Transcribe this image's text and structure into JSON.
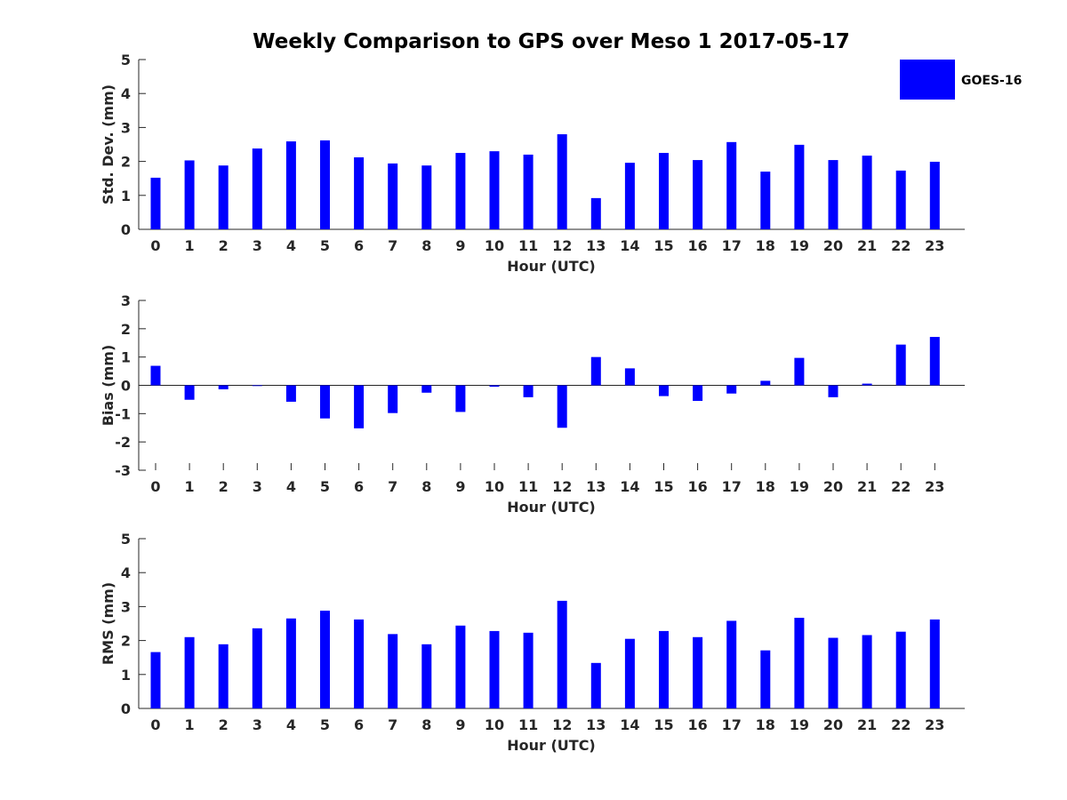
{
  "title": "Weekly Comparison to GPS over Meso 1 2017-05-17",
  "legend": {
    "label": "GOES-16",
    "color": "#0000ff"
  },
  "chart_data": [
    {
      "type": "bar",
      "name": "std-dev",
      "xlabel": "Hour (UTC)",
      "ylabel": "Std. Dev. (mm)",
      "ylim": [
        0,
        5
      ],
      "yticks": [
        "0",
        "1",
        "2",
        "3",
        "4",
        "5"
      ],
      "categories": [
        "0",
        "1",
        "2",
        "3",
        "4",
        "5",
        "6",
        "7",
        "8",
        "9",
        "10",
        "11",
        "12",
        "13",
        "14",
        "15",
        "16",
        "17",
        "18",
        "19",
        "20",
        "21",
        "22",
        "23"
      ],
      "series": [
        {
          "name": "GOES-16",
          "color": "#0000ff",
          "values": [
            1.52,
            2.03,
            1.88,
            2.38,
            2.59,
            2.62,
            2.12,
            1.94,
            1.88,
            2.25,
            2.3,
            2.2,
            2.8,
            0.92,
            1.96,
            2.25,
            2.04,
            2.57,
            1.7,
            2.49,
            2.04,
            2.17,
            1.73,
            1.99
          ]
        }
      ]
    },
    {
      "type": "bar",
      "name": "bias",
      "xlabel": "Hour (UTC)",
      "ylabel": "Bias (mm)",
      "ylim": [
        -3,
        3
      ],
      "yticks": [
        "-3",
        "-2",
        "-1",
        "0",
        "1",
        "2",
        "3"
      ],
      "categories": [
        "0",
        "1",
        "2",
        "3",
        "4",
        "5",
        "6",
        "7",
        "8",
        "9",
        "10",
        "11",
        "12",
        "13",
        "14",
        "15",
        "16",
        "17",
        "18",
        "19",
        "20",
        "21",
        "22",
        "23"
      ],
      "series": [
        {
          "name": "GOES-16",
          "color": "#0000ff",
          "values": [
            0.69,
            -0.51,
            -0.14,
            -0.02,
            -0.58,
            -1.17,
            -1.52,
            -0.98,
            -0.26,
            -0.94,
            -0.05,
            -0.42,
            -1.5,
            1.0,
            0.6,
            -0.38,
            -0.55,
            -0.29,
            0.16,
            0.97,
            -0.42,
            0.06,
            1.44,
            1.71
          ]
        }
      ]
    },
    {
      "type": "bar",
      "name": "rms",
      "xlabel": "Hour (UTC)",
      "ylabel": "RMS (mm)",
      "ylim": [
        0,
        5
      ],
      "yticks": [
        "0",
        "1",
        "2",
        "3",
        "4",
        "5"
      ],
      "categories": [
        "0",
        "1",
        "2",
        "3",
        "4",
        "5",
        "6",
        "7",
        "8",
        "9",
        "10",
        "11",
        "12",
        "13",
        "14",
        "15",
        "16",
        "17",
        "18",
        "19",
        "20",
        "21",
        "22",
        "23"
      ],
      "series": [
        {
          "name": "GOES-16",
          "color": "#0000ff",
          "values": [
            1.66,
            2.1,
            1.89,
            2.36,
            2.65,
            2.88,
            2.62,
            2.19,
            1.89,
            2.44,
            2.28,
            2.23,
            3.17,
            1.34,
            2.05,
            2.28,
            2.1,
            2.58,
            1.71,
            2.67,
            2.08,
            2.16,
            2.26,
            2.62
          ]
        }
      ]
    }
  ]
}
